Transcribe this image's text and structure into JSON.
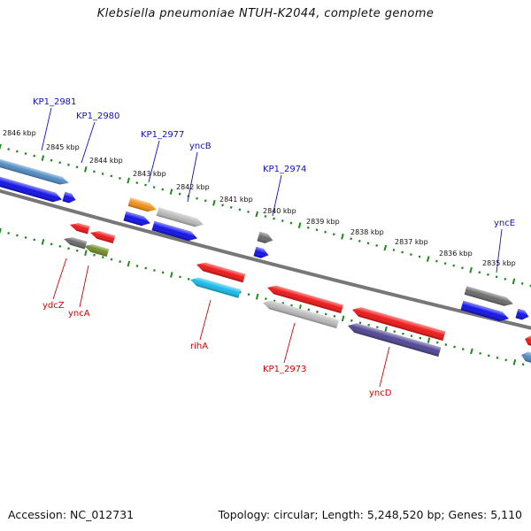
{
  "title": "Klebsiella pneumoniae NTUH-K2044, complete genome",
  "footer": {
    "accession": "Accession: NC_012731",
    "topology": "Topology: circular; Length: 5,248,520 bp; Genes: 5,110"
  },
  "colors": {
    "backbone": "#777777",
    "tick": "#1e8a1e",
    "forward_label": "#1010c8",
    "reverse_label": "#d40000",
    "blue": "#0a0ae6",
    "red": "#ee1010",
    "steelblue": "#4a88c0",
    "orange": "#f08c10",
    "gray": "#b8b8b8",
    "darkgray": "#666666",
    "olive": "#6a8a20",
    "cyan": "#10b8e8",
    "slate": "#4a4090"
  },
  "scale_labels": [
    "2846 kbp",
    "2845 kbp",
    "2844 kbp",
    "2843 kbp",
    "2842 kbp",
    "2841 kbp",
    "2840 kbp",
    "2839 kbp",
    "2838 kbp",
    "2837 kbp",
    "2836 kbp",
    "2835 kbp"
  ],
  "gene_labels": [
    "KP1_2981",
    "KP1_2980",
    "KP1_2977",
    "yncB",
    "KP1_2974",
    "yncE",
    "ydcZ",
    "yncA",
    "rihA",
    "KP1_2973",
    "yncD"
  ]
}
